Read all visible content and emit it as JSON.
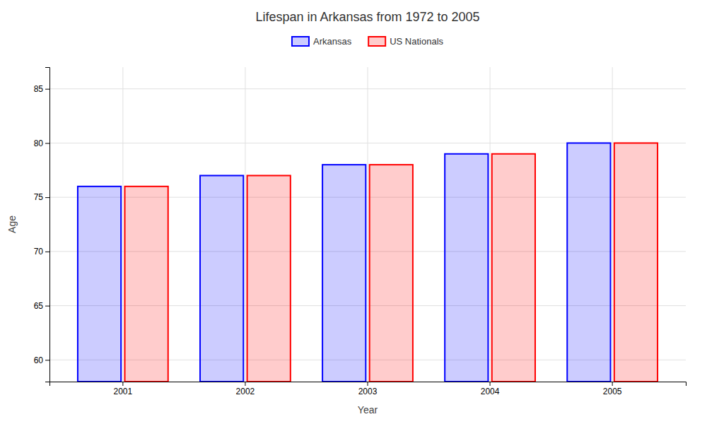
{
  "chart_data": {
    "type": "bar",
    "title": "Lifespan in Arkansas from 1972 to 2005",
    "xlabel": "Year",
    "ylabel": "Age",
    "categories": [
      "2001",
      "2002",
      "2003",
      "2004",
      "2005"
    ],
    "series": [
      {
        "name": "Arkansas",
        "color": "#0000ff",
        "values": [
          76,
          77,
          78,
          79,
          80
        ]
      },
      {
        "name": "US Nationals",
        "color": "#ff0000",
        "values": [
          76,
          77,
          78,
          79,
          80
        ]
      }
    ],
    "ylim": [
      58,
      87
    ],
    "yticks": [
      60,
      65,
      70,
      75,
      80,
      85
    ],
    "grid": true,
    "legend": "top"
  }
}
